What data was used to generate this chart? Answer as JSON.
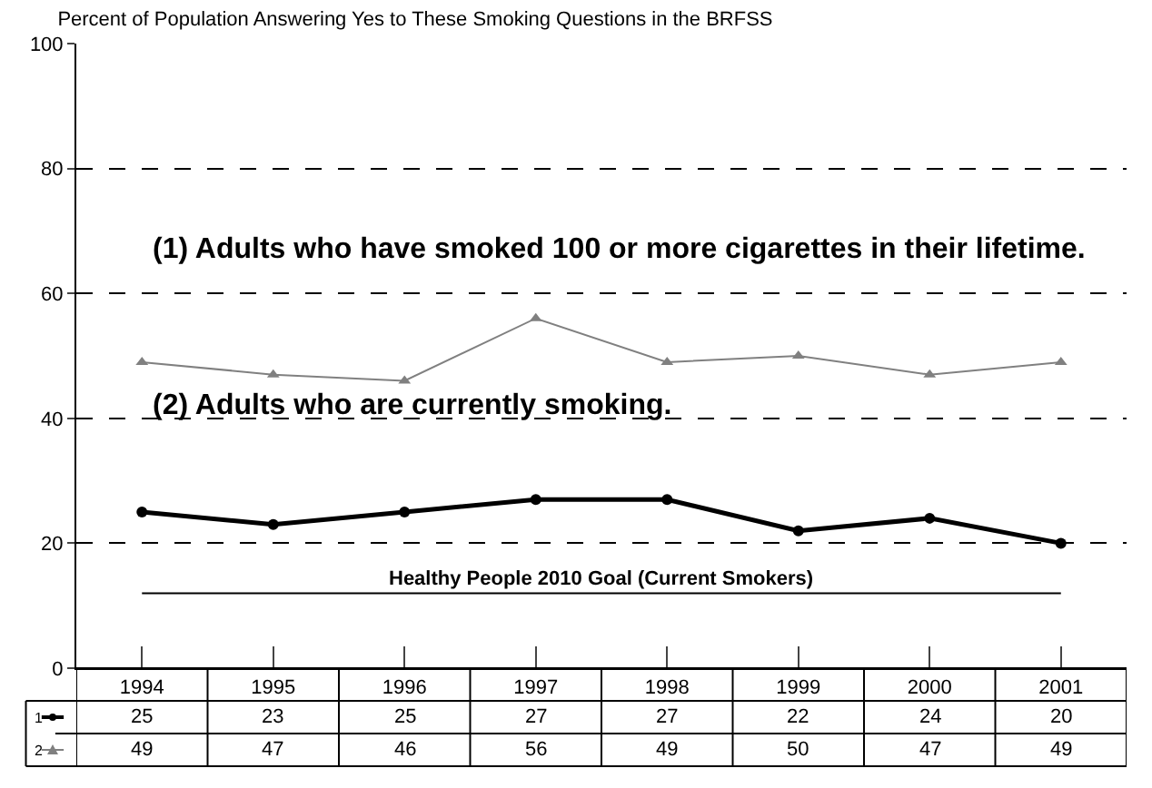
{
  "chart_data": {
    "type": "line",
    "title": "Percent of Population Answering Yes to These Smoking Questions in the BRFSS",
    "categories": [
      "1994",
      "1995",
      "1996",
      "1997",
      "1998",
      "1999",
      "2000",
      "2001"
    ],
    "series": [
      {
        "name": "1",
        "color": "#000000",
        "values": [
          25,
          23,
          25,
          27,
          27,
          22,
          24,
          20
        ],
        "marker": "circle"
      },
      {
        "name": "2",
        "color": "#808080",
        "values": [
          49,
          47,
          46,
          56,
          49,
          50,
          47,
          49
        ],
        "marker": "triangle"
      }
    ],
    "ylim": [
      0,
      100
    ],
    "yticks": [
      0,
      20,
      40,
      60,
      80,
      100
    ],
    "grid": "y",
    "legend": "bottom left",
    "data_labels": true,
    "ref_lines": [
      {
        "axis": "y",
        "value": 12,
        "label": "Healthy People 2010 Goal (Current Smokers)",
        "color": "#000000"
      }
    ],
    "annotations": [
      "(1) Adults who have smoked 100 or more cigarettes in their lifetime.",
      "(2) Adults who are currently smoking."
    ]
  }
}
